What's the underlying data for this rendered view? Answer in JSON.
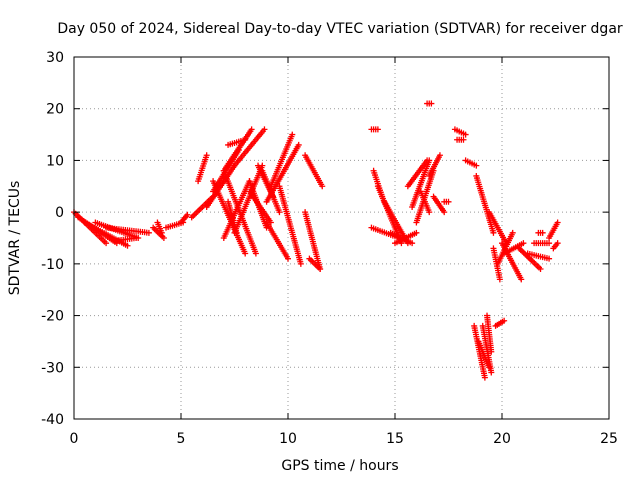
{
  "chart_data": {
    "type": "scatter",
    "title": "Day 050 of 2024, Sidereal Day-to-day VTEC variation (SDTVAR) for receiver dgar",
    "xlabel": "GPS time / hours",
    "ylabel": "SDTVAR / TECUs",
    "xlim": [
      0,
      25
    ],
    "ylim": [
      -40,
      30
    ],
    "xticks": [
      0,
      5,
      10,
      15,
      20,
      25
    ],
    "yticks": [
      -40,
      -30,
      -20,
      -10,
      0,
      10,
      20,
      30
    ],
    "grid": true,
    "marker": "+",
    "color": "#ff0000",
    "tracks": [
      {
        "x0": 0.0,
        "x1": 1.5,
        "y0": 0,
        "y1": -6
      },
      {
        "x0": 0.2,
        "x1": 2.0,
        "y0": -1,
        "y1": -6
      },
      {
        "x0": 0.5,
        "x1": 2.5,
        "y0": -2,
        "y1": -6.5
      },
      {
        "x0": 1.0,
        "x1": 3.0,
        "y0": -2,
        "y1": -5
      },
      {
        "x0": 1.5,
        "x1": 3.5,
        "y0": -3,
        "y1": -4
      },
      {
        "x0": 2.0,
        "x1": 2.9,
        "y0": -5.5,
        "y1": -5
      },
      {
        "x0": 3.7,
        "x1": 4.2,
        "y0": -3,
        "y1": -5
      },
      {
        "x0": 3.9,
        "x1": 4.1,
        "y0": -2,
        "y1": -4
      },
      {
        "x0": 4.3,
        "x1": 5.1,
        "y0": -3,
        "y1": -2
      },
      {
        "x0": 5.0,
        "x1": 5.3,
        "y0": -2,
        "y1": -0.5
      },
      {
        "x0": 5.5,
        "x1": 6.5,
        "y0": -1,
        "y1": 3
      },
      {
        "x0": 5.8,
        "x1": 6.2,
        "y0": 6,
        "y1": 11
      },
      {
        "x0": 6.2,
        "x1": 7.5,
        "y0": 1,
        "y1": 9
      },
      {
        "x0": 6.5,
        "x1": 7.7,
        "y0": 4,
        "y1": 12
      },
      {
        "x0": 7.0,
        "x1": 8.3,
        "y0": 8,
        "y1": 16
      },
      {
        "x0": 7.5,
        "x1": 8.9,
        "y0": 9,
        "y1": 16
      },
      {
        "x0": 7.2,
        "x1": 8.0,
        "y0": 13,
        "y1": 14
      },
      {
        "x0": 6.5,
        "x1": 8.0,
        "y0": 6,
        "y1": -8
      },
      {
        "x0": 7.0,
        "x1": 8.5,
        "y0": 8,
        "y1": -8
      },
      {
        "x0": 7.2,
        "x1": 7.6,
        "y0": 2,
        "y1": -4
      },
      {
        "x0": 8.2,
        "x1": 9.0,
        "y0": 6,
        "y1": -3
      },
      {
        "x0": 8.2,
        "x1": 9.2,
        "y0": 4,
        "y1": -2
      },
      {
        "x0": 8.6,
        "x1": 9.3,
        "y0": 9,
        "y1": 3
      },
      {
        "x0": 7.5,
        "x1": 8.8,
        "y0": -4,
        "y1": 9
      },
      {
        "x0": 7.0,
        "x1": 8.2,
        "y0": -5,
        "y1": 6
      },
      {
        "x0": 9.0,
        "x1": 10.5,
        "y0": 2,
        "y1": 13
      },
      {
        "x0": 9.2,
        "x1": 10.2,
        "y0": 5,
        "y1": 15
      },
      {
        "x0": 9.0,
        "x1": 10.0,
        "y0": -2,
        "y1": -9
      },
      {
        "x0": 9.6,
        "x1": 10.6,
        "y0": 5,
        "y1": -10
      },
      {
        "x0": 8.8,
        "x1": 9.6,
        "y0": 8,
        "y1": 0
      },
      {
        "x0": 10.8,
        "x1": 11.6,
        "y0": 11,
        "y1": 5
      },
      {
        "x0": 10.8,
        "x1": 11.5,
        "y0": 0,
        "y1": -11
      },
      {
        "x0": 11.0,
        "x1": 11.5,
        "y0": -9,
        "y1": -11
      },
      {
        "x0": 13.9,
        "x1": 14.2,
        "y0": 16,
        "y1": 16
      },
      {
        "x0": 14.0,
        "x1": 14.4,
        "y0": 8,
        "y1": 3
      },
      {
        "x0": 13.9,
        "x1": 15.2,
        "y0": -3,
        "y1": -5
      },
      {
        "x0": 14.2,
        "x1": 15.3,
        "y0": 5,
        "y1": -6
      },
      {
        "x0": 14.5,
        "x1": 15.6,
        "y0": 2,
        "y1": -6
      },
      {
        "x0": 14.8,
        "x1": 15.8,
        "y0": -4,
        "y1": -6
      },
      {
        "x0": 15.0,
        "x1": 16.0,
        "y0": -6,
        "y1": -4
      },
      {
        "x0": 15.6,
        "x1": 16.5,
        "y0": 5,
        "y1": 10
      },
      {
        "x0": 15.8,
        "x1": 16.6,
        "y0": 1,
        "y1": 10
      },
      {
        "x0": 16.0,
        "x1": 16.8,
        "y0": -2,
        "y1": 8
      },
      {
        "x0": 16.2,
        "x1": 16.6,
        "y0": 4,
        "y1": 0
      },
      {
        "x0": 16.5,
        "x1": 16.7,
        "y0": 21,
        "y1": 21
      },
      {
        "x0": 16.6,
        "x1": 17.1,
        "y0": 7,
        "y1": 11
      },
      {
        "x0": 16.8,
        "x1": 17.3,
        "y0": 3,
        "y1": 0
      },
      {
        "x0": 17.3,
        "x1": 17.5,
        "y0": 2,
        "y1": 2
      },
      {
        "x0": 17.8,
        "x1": 18.3,
        "y0": 16,
        "y1": 15
      },
      {
        "x0": 17.9,
        "x1": 18.2,
        "y0": 14,
        "y1": 14
      },
      {
        "x0": 18.3,
        "x1": 18.8,
        "y0": 10,
        "y1": 9
      },
      {
        "x0": 18.8,
        "x1": 19.6,
        "y0": 7,
        "y1": -4
      },
      {
        "x0": 19.4,
        "x1": 20.2,
        "y0": 0,
        "y1": -6
      },
      {
        "x0": 19.6,
        "x1": 19.9,
        "y0": -7,
        "y1": -13
      },
      {
        "x0": 19.8,
        "x1": 20.5,
        "y0": -10,
        "y1": -4
      },
      {
        "x0": 20.0,
        "x1": 20.9,
        "y0": -6,
        "y1": -13
      },
      {
        "x0": 20.1,
        "x1": 21.0,
        "y0": -8,
        "y1": -6
      },
      {
        "x0": 20.8,
        "x1": 21.8,
        "y0": -7,
        "y1": -11
      },
      {
        "x0": 21.2,
        "x1": 22.2,
        "y0": -8,
        "y1": -9
      },
      {
        "x0": 21.5,
        "x1": 22.2,
        "y0": -6,
        "y1": -6
      },
      {
        "x0": 21.7,
        "x1": 21.9,
        "y0": -4,
        "y1": -4
      },
      {
        "x0": 22.2,
        "x1": 22.6,
        "y0": -5,
        "y1": -2
      },
      {
        "x0": 22.4,
        "x1": 22.6,
        "y0": -7,
        "y1": -6
      },
      {
        "x0": 18.7,
        "x1": 19.2,
        "y0": -22,
        "y1": -32
      },
      {
        "x0": 18.9,
        "x1": 19.4,
        "y0": -25,
        "y1": -30
      },
      {
        "x0": 19.1,
        "x1": 19.5,
        "y0": -22,
        "y1": -31
      },
      {
        "x0": 19.3,
        "x1": 19.5,
        "y0": -20,
        "y1": -27
      },
      {
        "x0": 19.7,
        "x1": 20.1,
        "y0": -22,
        "y1": -21
      }
    ]
  }
}
